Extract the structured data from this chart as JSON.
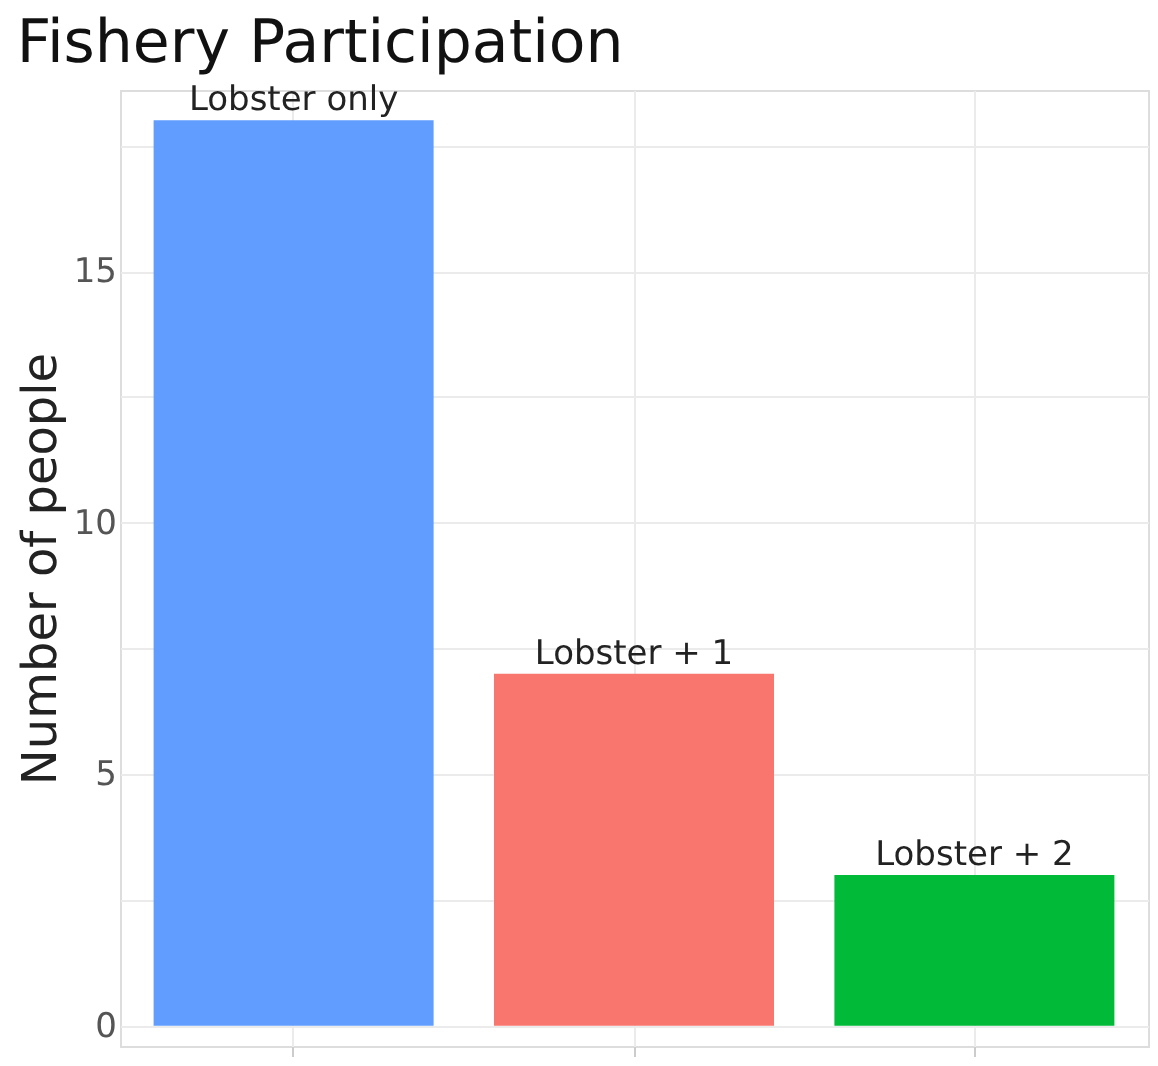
{
  "chart_data": {
    "type": "bar",
    "title": "Fishery Participation",
    "ylabel": "Number of people",
    "categories": [
      "Lobster only",
      "Lobster + 1",
      "Lobster + 2"
    ],
    "values": [
      18,
      7,
      3
    ],
    "colors": [
      "#619cff",
      "#f8766d",
      "#00ba38"
    ],
    "ylim": [
      -0.4,
      18.6
    ],
    "yticks": [
      0,
      {
        "value": 2.5,
        "label": null
      },
      5,
      {
        "value": 7.5,
        "label": null
      },
      10,
      {
        "value": 12.5,
        "label": null
      },
      15,
      {
        "value": 17.5,
        "label": null
      }
    ],
    "grid": true,
    "tick_labels": "y"
  }
}
